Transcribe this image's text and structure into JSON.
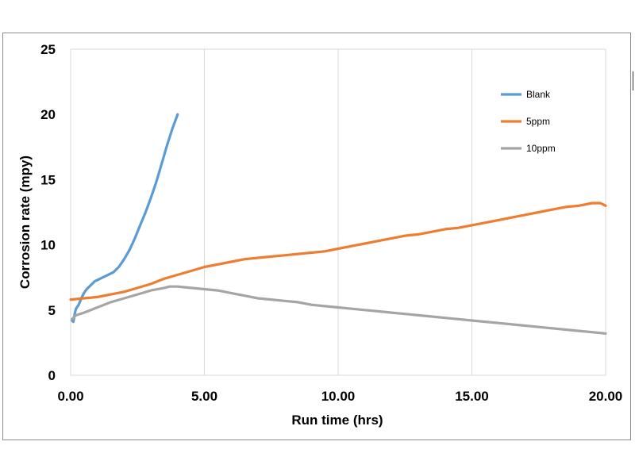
{
  "chart_data": {
    "type": "line",
    "xlabel": "Run time (hrs)",
    "ylabel": "Corrosion rate (mpy)",
    "xlim": [
      0,
      20
    ],
    "ylim": [
      0,
      25
    ],
    "x_ticks": [
      0,
      5,
      10,
      15,
      20
    ],
    "x_tick_labels": [
      "0.00",
      "5.00",
      "10.00",
      "15.00",
      "20.00"
    ],
    "y_ticks": [
      0,
      5,
      10,
      15,
      20,
      25
    ],
    "y_tick_labels": [
      "0",
      "5",
      "10",
      "15",
      "20",
      "25"
    ],
    "grid": "vertical",
    "legend_position": "top-right",
    "series": [
      {
        "name": "Blank",
        "color": "#5b9bd5",
        "x": [
          0.05,
          0.1,
          0.15,
          0.2,
          0.3,
          0.4,
          0.5,
          0.6,
          0.7,
          0.8,
          0.9,
          1.0,
          1.2,
          1.4,
          1.6,
          1.8,
          2.0,
          2.2,
          2.4,
          2.6,
          2.8,
          3.0,
          3.2,
          3.4,
          3.6,
          3.8,
          4.0
        ],
        "y": [
          4.2,
          4.1,
          4.7,
          5.1,
          5.4,
          5.9,
          6.3,
          6.6,
          6.8,
          7.0,
          7.2,
          7.3,
          7.5,
          7.7,
          7.9,
          8.3,
          8.9,
          9.6,
          10.5,
          11.5,
          12.5,
          13.6,
          14.8,
          16.2,
          17.6,
          18.9,
          20.0
        ]
      },
      {
        "name": "5ppm",
        "color": "#ed7d31",
        "x": [
          0.0,
          0.5,
          1.0,
          1.5,
          2.0,
          2.5,
          3.0,
          3.5,
          4.0,
          4.5,
          5.0,
          5.5,
          6.0,
          6.5,
          7.0,
          7.5,
          8.0,
          8.5,
          9.0,
          9.5,
          10.0,
          10.5,
          11.0,
          11.5,
          12.0,
          12.5,
          13.0,
          13.5,
          14.0,
          14.5,
          15.0,
          15.5,
          16.0,
          16.5,
          17.0,
          17.5,
          18.0,
          18.5,
          19.0,
          19.5,
          19.8,
          20.0
        ],
        "y": [
          5.8,
          5.9,
          6.0,
          6.2,
          6.4,
          6.7,
          7.0,
          7.4,
          7.7,
          8.0,
          8.3,
          8.5,
          8.7,
          8.9,
          9.0,
          9.1,
          9.2,
          9.3,
          9.4,
          9.5,
          9.7,
          9.9,
          10.1,
          10.3,
          10.5,
          10.7,
          10.8,
          11.0,
          11.2,
          11.3,
          11.5,
          11.7,
          11.9,
          12.1,
          12.3,
          12.5,
          12.7,
          12.9,
          13.0,
          13.2,
          13.2,
          13.0
        ]
      },
      {
        "name": "10ppm",
        "color": "#a5a5a5",
        "x": [
          0.05,
          0.2,
          0.5,
          1.0,
          1.5,
          2.0,
          2.5,
          3.0,
          3.5,
          3.7,
          4.0,
          4.5,
          5.0,
          5.5,
          6.0,
          6.5,
          7.0,
          7.5,
          8.0,
          8.5,
          9.0,
          9.5,
          10.0,
          10.5,
          11.0,
          11.5,
          12.0,
          12.5,
          13.0,
          13.5,
          14.0,
          14.5,
          15.0,
          15.5,
          16.0,
          16.5,
          17.0,
          17.5,
          18.0,
          18.5,
          19.0,
          19.5,
          20.0
        ],
        "y": [
          4.3,
          4.6,
          4.8,
          5.2,
          5.6,
          5.9,
          6.2,
          6.5,
          6.7,
          6.8,
          6.8,
          6.7,
          6.6,
          6.5,
          6.3,
          6.1,
          5.9,
          5.8,
          5.7,
          5.6,
          5.4,
          5.3,
          5.2,
          5.1,
          5.0,
          4.9,
          4.8,
          4.7,
          4.6,
          4.5,
          4.4,
          4.3,
          4.2,
          4.1,
          4.0,
          3.9,
          3.8,
          3.7,
          3.6,
          3.5,
          3.4,
          3.3,
          3.2
        ]
      }
    ]
  }
}
